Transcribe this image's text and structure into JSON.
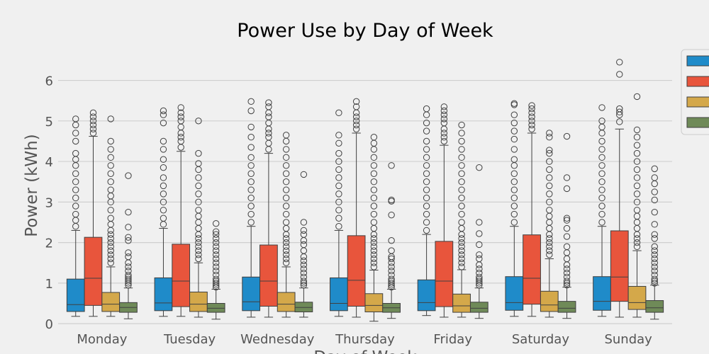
{
  "chart_data": {
    "type": "box",
    "title": "Power Use by Day of Week",
    "xlabel": "Day of Week",
    "ylabel": "Power (kWh)",
    "ylim": [
      -0.05,
      6.9
    ],
    "yticks": [
      0,
      1,
      2,
      3,
      4,
      5,
      6
    ],
    "grid": true,
    "legend_position": "right",
    "categories": [
      "Monday",
      "Tuesday",
      "Wednesday",
      "Thursday",
      "Friday",
      "Saturday",
      "Sunday"
    ],
    "series": [
      {
        "color": "#1f8bc9",
        "boxes": [
          {
            "whislo": 0.18,
            "q1": 0.3,
            "med": 0.47,
            "q3": 1.1,
            "whishi": 2.3,
            "fliers": [
              2.4,
              2.55,
              2.7,
              2.9,
              3.1,
              3.3,
              3.5,
              3.7,
              3.9,
              4.05,
              4.2,
              4.5,
              4.7,
              4.9,
              5.05
            ]
          },
          {
            "whislo": 0.18,
            "q1": 0.32,
            "med": 0.51,
            "q3": 1.13,
            "whishi": 2.35,
            "fliers": [
              2.45,
              2.6,
              2.8,
              3.0,
              3.2,
              3.4,
              3.6,
              3.85,
              4.05,
              4.3,
              4.5,
              4.95,
              5.15,
              5.25
            ]
          },
          {
            "whislo": 0.16,
            "q1": 0.32,
            "med": 0.54,
            "q3": 1.15,
            "whishi": 2.4,
            "fliers": [
              2.5,
              2.7,
              2.9,
              3.1,
              3.3,
              3.5,
              3.7,
              3.9,
              4.1,
              4.35,
              4.6,
              4.85,
              5.25,
              5.48
            ]
          },
          {
            "whislo": 0.18,
            "q1": 0.32,
            "med": 0.5,
            "q3": 1.13,
            "whishi": 2.3,
            "fliers": [
              2.4,
              2.6,
              2.8,
              3.0,
              3.2,
              3.4,
              3.6,
              3.8,
              4.0,
              4.2,
              4.45,
              4.65,
              5.2
            ]
          },
          {
            "whislo": 0.2,
            "q1": 0.32,
            "med": 0.52,
            "q3": 1.08,
            "whishi": 2.2,
            "fliers": [
              2.3,
              2.5,
              2.7,
              2.9,
              3.1,
              3.3,
              3.5,
              3.7,
              3.9,
              4.1,
              4.3,
              4.5,
              4.75,
              4.95,
              5.15,
              5.3
            ]
          },
          {
            "whislo": 0.18,
            "q1": 0.33,
            "med": 0.52,
            "q3": 1.16,
            "whishi": 2.4,
            "fliers": [
              2.5,
              2.7,
              2.9,
              3.1,
              3.3,
              3.5,
              3.7,
              3.9,
              4.05,
              4.3,
              4.55,
              4.75,
              4.95,
              5.15,
              5.4,
              5.43
            ]
          },
          {
            "whislo": 0.18,
            "q1": 0.33,
            "med": 0.55,
            "q3": 1.16,
            "whishi": 2.4,
            "fliers": [
              2.5,
              2.7,
              2.9,
              3.1,
              3.3,
              3.5,
              3.7,
              3.9,
              4.1,
              4.3,
              4.5,
              4.7,
              4.85,
              5.0,
              5.33
            ]
          }
        ]
      },
      {
        "color": "#e8553c",
        "boxes": [
          {
            "whislo": 0.18,
            "q1": 0.45,
            "med": 1.12,
            "q3": 2.13,
            "whishi": 4.62,
            "fliers": [
              4.7,
              4.8,
              4.9,
              5.0,
              5.1,
              5.2
            ]
          },
          {
            "whislo": 0.18,
            "q1": 0.42,
            "med": 1.05,
            "q3": 1.96,
            "whishi": 4.25,
            "fliers": [
              4.35,
              4.5,
              4.6,
              4.7,
              4.85,
              5.0,
              5.1,
              5.2,
              5.33
            ]
          },
          {
            "whislo": 0.16,
            "q1": 0.43,
            "med": 1.05,
            "q3": 1.94,
            "whishi": 4.2,
            "fliers": [
              4.3,
              4.45,
              4.6,
              4.7,
              4.8,
              4.95,
              5.1,
              5.2,
              5.35,
              5.45
            ]
          },
          {
            "whislo": 0.16,
            "q1": 0.43,
            "med": 1.07,
            "q3": 2.17,
            "whishi": 4.7,
            "fliers": [
              4.8,
              4.9,
              5.0,
              5.1,
              5.2,
              5.35,
              5.48
            ]
          },
          {
            "whislo": 0.16,
            "q1": 0.42,
            "med": 1.05,
            "q3": 2.03,
            "whishi": 4.4,
            "fliers": [
              4.5,
              4.6,
              4.7,
              4.8,
              4.95,
              5.05,
              5.15,
              5.25,
              5.35
            ]
          },
          {
            "whislo": 0.18,
            "q1": 0.48,
            "med": 1.12,
            "q3": 2.19,
            "whishi": 4.7,
            "fliers": [
              4.8,
              4.9,
              5.0,
              5.1,
              5.2,
              5.3,
              5.38
            ]
          },
          {
            "whislo": 0.16,
            "q1": 0.55,
            "med": 1.15,
            "q3": 2.29,
            "whishi": 4.8,
            "fliers": [
              4.98,
              5.15,
              5.22,
              5.3,
              6.15,
              6.45
            ]
          }
        ]
      },
      {
        "color": "#d4a84a",
        "boxes": [
          {
            "whislo": 0.18,
            "q1": 0.3,
            "med": 0.48,
            "q3": 0.77,
            "whishi": 1.4,
            "fliers": [
              1.5,
              1.6,
              1.7,
              1.8,
              1.9,
              2.0,
              2.1,
              2.2,
              2.3,
              2.45,
              2.6,
              2.8,
              3.0,
              3.15,
              3.3,
              3.5,
              3.7,
              3.9,
              4.1,
              4.3,
              4.5,
              5.05
            ]
          },
          {
            "whislo": 0.16,
            "q1": 0.3,
            "med": 0.48,
            "q3": 0.78,
            "whishi": 1.5,
            "fliers": [
              1.6,
              1.7,
              1.8,
              1.9,
              2.0,
              2.1,
              2.2,
              2.35,
              2.5,
              2.65,
              2.8,
              3.0,
              3.2,
              3.4,
              3.6,
              3.8,
              3.95,
              4.2,
              5.0
            ]
          },
          {
            "whislo": 0.16,
            "q1": 0.3,
            "med": 0.48,
            "q3": 0.77,
            "whishi": 1.4,
            "fliers": [
              1.5,
              1.6,
              1.7,
              1.8,
              1.9,
              2.0,
              2.1,
              2.2,
              2.35,
              2.5,
              2.7,
              2.9,
              3.1,
              3.3,
              3.5,
              3.7,
              3.9,
              4.1,
              4.3,
              4.5,
              4.65
            ]
          },
          {
            "whislo": 0.06,
            "q1": 0.29,
            "med": 0.45,
            "q3": 0.74,
            "whishi": 1.32,
            "fliers": [
              1.4,
              1.5,
              1.6,
              1.7,
              1.8,
              1.9,
              2.0,
              2.1,
              2.2,
              2.35,
              2.5,
              2.7,
              2.9,
              3.1,
              3.3,
              3.5,
              3.7,
              3.9,
              4.1,
              4.3,
              4.45,
              4.6
            ]
          },
          {
            "whislo": 0.16,
            "q1": 0.28,
            "med": 0.44,
            "q3": 0.73,
            "whishi": 1.33,
            "fliers": [
              1.4,
              1.5,
              1.6,
              1.7,
              1.8,
              1.9,
              2.0,
              2.1,
              2.2,
              2.35,
              2.5,
              2.7,
              2.9,
              3.1,
              3.3,
              3.5,
              3.7,
              3.9,
              4.1,
              4.3,
              4.5,
              4.7,
              4.9
            ]
          },
          {
            "whislo": 0.16,
            "q1": 0.3,
            "med": 0.46,
            "q3": 0.8,
            "whishi": 1.6,
            "fliers": [
              1.7,
              1.8,
              1.9,
              2.0,
              2.1,
              2.2,
              2.35,
              2.5,
              2.65,
              2.8,
              3.0,
              3.2,
              3.4,
              3.6,
              3.8,
              4.0,
              4.2,
              4.28,
              4.6,
              4.7
            ]
          },
          {
            "whislo": 0.16,
            "q1": 0.35,
            "med": 0.52,
            "q3": 0.92,
            "whishi": 1.8,
            "fliers": [
              1.9,
              2.0,
              2.1,
              2.2,
              2.35,
              2.5,
              2.65,
              2.8,
              3.0,
              3.2,
              3.4,
              3.6,
              3.8,
              4.0,
              4.2,
              4.4,
              4.6,
              4.78,
              5.6
            ]
          }
        ]
      },
      {
        "color": "#6f8a58",
        "boxes": [
          {
            "whislo": 0.12,
            "q1": 0.28,
            "med": 0.4,
            "q3": 0.52,
            "whishi": 0.88,
            "fliers": [
              0.95,
              1.0,
              1.05,
              1.1,
              1.15,
              1.2,
              1.3,
              1.4,
              1.5,
              1.65,
              1.75,
              2.05,
              2.13,
              2.38,
              2.75,
              3.65
            ]
          },
          {
            "whislo": 0.11,
            "q1": 0.28,
            "med": 0.38,
            "q3": 0.5,
            "whishi": 0.85,
            "fliers": [
              0.9,
              0.95,
              1.0,
              1.05,
              1.1,
              1.2,
              1.3,
              1.4,
              1.5,
              1.6,
              1.7,
              1.8,
              1.9,
              2.0,
              2.1,
              2.2,
              2.27,
              2.47
            ]
          },
          {
            "whislo": 0.16,
            "q1": 0.29,
            "med": 0.4,
            "q3": 0.53,
            "whishi": 0.88,
            "fliers": [
              0.95,
              1.0,
              1.05,
              1.15,
              1.25,
              1.35,
              1.45,
              1.55,
              1.65,
              1.8,
              1.95,
              2.05,
              2.2,
              2.3,
              2.5,
              3.68
            ]
          },
          {
            "whislo": 0.13,
            "q1": 0.28,
            "med": 0.39,
            "q3": 0.5,
            "whishi": 0.85,
            "fliers": [
              0.9,
              0.95,
              1.0,
              1.05,
              1.1,
              1.2,
              1.3,
              1.4,
              1.5,
              1.6,
              1.65,
              1.8,
              2.05,
              2.68,
              3.02,
              3.05,
              3.9
            ]
          },
          {
            "whislo": 0.13,
            "q1": 0.28,
            "med": 0.38,
            "q3": 0.53,
            "whishi": 0.88,
            "fliers": [
              0.95,
              1.0,
              1.05,
              1.1,
              1.15,
              1.25,
              1.35,
              1.45,
              1.6,
              1.7,
              1.95,
              2.22,
              2.5,
              3.85
            ]
          },
          {
            "whislo": 0.13,
            "q1": 0.28,
            "med": 0.38,
            "q3": 0.55,
            "whishi": 0.9,
            "fliers": [
              0.95,
              1.0,
              1.05,
              1.15,
              1.25,
              1.35,
              1.45,
              1.6,
              1.75,
              1.9,
              2.15,
              2.35,
              2.55,
              2.6,
              3.33,
              3.6,
              4.62
            ]
          },
          {
            "whislo": 0.11,
            "q1": 0.28,
            "med": 0.39,
            "q3": 0.57,
            "whishi": 0.95,
            "fliers": [
              1.0,
              1.05,
              1.1,
              1.2,
              1.3,
              1.4,
              1.5,
              1.6,
              1.7,
              1.8,
              1.9,
              2.1,
              2.2,
              2.45,
              2.75,
              3.05,
              3.25,
              3.45,
              3.6,
              3.82
            ]
          }
        ]
      }
    ]
  }
}
